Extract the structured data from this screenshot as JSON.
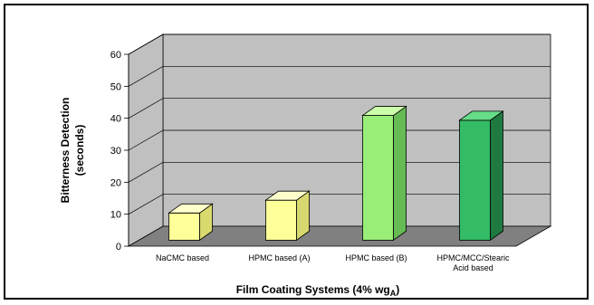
{
  "chart_data": {
    "type": "bar",
    "title": "",
    "xlabel": "Film Coating Systems (4% wg",
    "xlabel_subscript": "A",
    "xlabel_suffix": ")",
    "ylabel_line1": "Bitterness Detection",
    "ylabel_line2": "(seconds)",
    "ylim": [
      0,
      60
    ],
    "yticks": [
      "0",
      "10",
      "20",
      "30",
      "40",
      "50",
      "60"
    ],
    "categories": [
      [
        "NaCMC based"
      ],
      [
        "HPMC based (A)"
      ],
      [
        "HPMC based (B)"
      ],
      [
        "HPMC/MCC/Stearic",
        "Acid based"
      ]
    ],
    "values": [
      8.5,
      12.5,
      39,
      37.5
    ],
    "colors": [
      {
        "front": "#ffff99",
        "side": "#d9d96e",
        "top": "#ffffcc"
      },
      {
        "front": "#ffff99",
        "side": "#d8d870",
        "top": "#ffffcc"
      },
      {
        "front": "#99ee77",
        "side": "#66bb55",
        "top": "#ccffaa"
      },
      {
        "front": "#33bb66",
        "side": "#1f7a40",
        "top": "#66dd88"
      }
    ],
    "grid": true,
    "legend": "none"
  }
}
